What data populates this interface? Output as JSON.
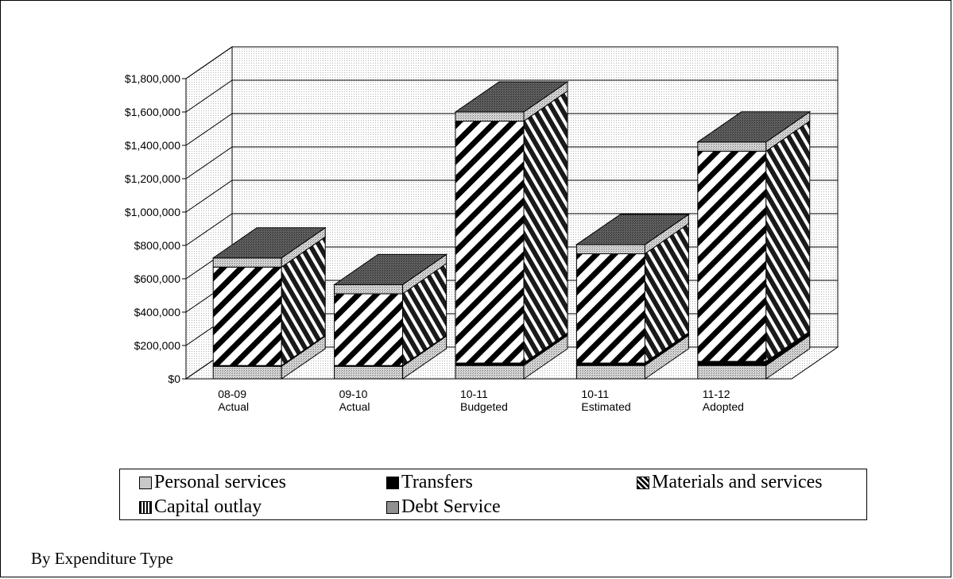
{
  "caption": "By Expenditure Type",
  "chart_data": {
    "type": "bar",
    "stacked": true,
    "style": "3d",
    "categories": [
      [
        "08-09",
        "Actual"
      ],
      [
        "09-10",
        "Actual"
      ],
      [
        "10-11",
        "Budgeted"
      ],
      [
        "10-11",
        "Estimated"
      ],
      [
        "11-12",
        "Adopted"
      ]
    ],
    "ylim": [
      0,
      1800000
    ],
    "yticks": [
      "$0",
      "$200,000",
      "$400,000",
      "$600,000",
      "$800,000",
      "$1,000,000",
      "$1,200,000",
      "$1,400,000",
      "$1,600,000",
      "$1,800,000"
    ],
    "series": [
      {
        "name": "Personal services",
        "values": [
          75000,
          75000,
          80000,
          80000,
          80000
        ],
        "color": "#c0c0c0",
        "pattern": "dots"
      },
      {
        "name": "Transfers",
        "values": [
          5000,
          5000,
          15000,
          15000,
          25000
        ],
        "color": "#000000",
        "pattern": "solid"
      },
      {
        "name": "Materials and services",
        "values": [
          590000,
          430000,
          1450000,
          655000,
          1260000
        ],
        "color": "#ffffff",
        "pattern": "diagonal-stripes"
      },
      {
        "name": "Capital outlay",
        "values": [
          0,
          0,
          0,
          0,
          0
        ],
        "color": "#808080",
        "pattern": "vertical-stripes"
      },
      {
        "name": "Debt Service",
        "values": [
          55000,
          55000,
          55000,
          55000,
          55000
        ],
        "color": "#999999",
        "pattern": "dots"
      }
    ],
    "grid": true,
    "legend_position": "bottom"
  },
  "legend": [
    {
      "label": "Personal services"
    },
    {
      "label": "Transfers"
    },
    {
      "label": "Materials and services"
    },
    {
      "label": "Capital outlay"
    },
    {
      "label": "Debt Service"
    }
  ]
}
